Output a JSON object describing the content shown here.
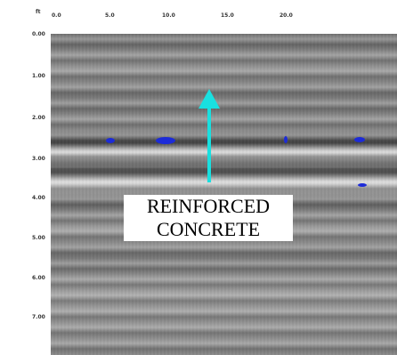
{
  "x_axis": {
    "unit": "ft",
    "ticks": [
      "0.0",
      "5.0",
      "10.0",
      "15.0",
      "20.0"
    ]
  },
  "y_axis": {
    "ticks": [
      "0.00",
      "1.00",
      "2.00",
      "3.00",
      "4.00",
      "5.00",
      "6.00",
      "7.00"
    ]
  },
  "annotation": {
    "lines": [
      "REINFORCED",
      "CONCRETE"
    ]
  }
}
